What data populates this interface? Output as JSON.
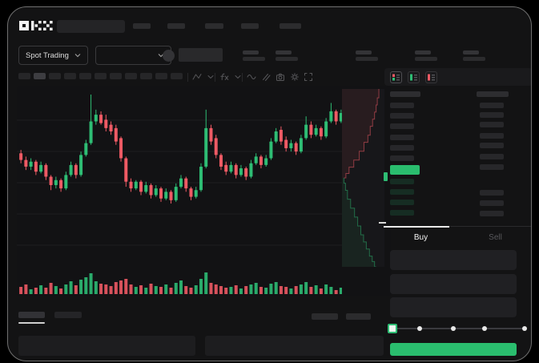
{
  "topbar": {
    "logo_text": "OKX",
    "nav_placeholder_count": 5
  },
  "market_header": {
    "market_selector_label": "Spot Trading",
    "pair_dropdown": "",
    "stat_placeholder_count": 5
  },
  "chart_toolbar": {
    "timeframe_placeholder_count": 11,
    "active_timeframe_index": 1,
    "tool_icons": [
      "zigzag-icon",
      "chevron-down-icon",
      "indicator-fx-icon",
      "chevron-down-icon",
      "wave-icon",
      "layers-icon",
      "camera-icon",
      "gear-icon",
      "expand-icon"
    ]
  },
  "order_book": {
    "view_options": [
      "combined-book-icon",
      "bids-book-icon",
      "asks-book-icon"
    ],
    "selected_view_index": 0,
    "ask_price_rows": 6,
    "ask_amount_rows": 7,
    "bid_price_rows": 4,
    "bid_amount_rows": 3,
    "last_price_highlight_color": "#2abd6e"
  },
  "trade_form": {
    "tabs": [
      {
        "label": "Buy",
        "active": true
      },
      {
        "label": "Sell",
        "active": false
      }
    ],
    "input_count": 3,
    "slider_stop_count": 5,
    "slider_position_index": 0,
    "submit_button_color": "#2abd6e"
  },
  "bottom_panel": {
    "tab_placeholder_count": 2,
    "active_tab_index": 0,
    "right_placeholder_count": 2,
    "content_block_count": 2
  },
  "colors": {
    "up": "#2ebd74",
    "down": "#ee5a64",
    "background": "#131314",
    "skeleton": "#2b2b2d",
    "grid": "#1d1d20",
    "text": "#eaecef",
    "muted": "#58585c"
  },
  "chart_data": {
    "type": "candlestick",
    "title": "",
    "xlabel": "",
    "ylabel": "",
    "grid": true,
    "price_scale": "normalized 0-100",
    "candles_ochl": [
      [
        62,
        58,
        64,
        56
      ],
      [
        58,
        54,
        60,
        52
      ],
      [
        54,
        57,
        59,
        52
      ],
      [
        57,
        51,
        58,
        49
      ],
      [
        51,
        55,
        57,
        50
      ],
      [
        55,
        48,
        56,
        46
      ],
      [
        48,
        43,
        49,
        40
      ],
      [
        43,
        46,
        48,
        41
      ],
      [
        46,
        41,
        47,
        39
      ],
      [
        41,
        49,
        51,
        40
      ],
      [
        49,
        55,
        57,
        48
      ],
      [
        55,
        49,
        56,
        47
      ],
      [
        49,
        61,
        63,
        48
      ],
      [
        61,
        68,
        70,
        60
      ],
      [
        68,
        81,
        97,
        67
      ],
      [
        81,
        85,
        88,
        79
      ],
      [
        85,
        80,
        87,
        79
      ],
      [
        82,
        77,
        85,
        75
      ],
      [
        79,
        75,
        81,
        73
      ],
      [
        77,
        69,
        79,
        67
      ],
      [
        71,
        59,
        72,
        57
      ],
      [
        59,
        45,
        60,
        42
      ],
      [
        45,
        41,
        47,
        39
      ],
      [
        41,
        45,
        46,
        40
      ],
      [
        45,
        39,
        46,
        37
      ],
      [
        39,
        43,
        45,
        38
      ],
      [
        43,
        37,
        44,
        35
      ],
      [
        37,
        41,
        43,
        36
      ],
      [
        41,
        35,
        42,
        33
      ],
      [
        35,
        39,
        41,
        34
      ],
      [
        39,
        34,
        40,
        32
      ],
      [
        34,
        42,
        44,
        33
      ],
      [
        42,
        47,
        49,
        41
      ],
      [
        47,
        41,
        48,
        39
      ],
      [
        41,
        36,
        42,
        34
      ],
      [
        36,
        40,
        42,
        35
      ],
      [
        40,
        54,
        56,
        39
      ],
      [
        54,
        77,
        88,
        53
      ],
      [
        77,
        69,
        79,
        67
      ],
      [
        71,
        61,
        73,
        59
      ],
      [
        61,
        54,
        62,
        52
      ],
      [
        55,
        51,
        57,
        49
      ],
      [
        51,
        55,
        57,
        50
      ],
      [
        55,
        49,
        56,
        47
      ],
      [
        49,
        53,
        55,
        48
      ],
      [
        53,
        48,
        54,
        46
      ],
      [
        48,
        56,
        58,
        47
      ],
      [
        56,
        60,
        62,
        55
      ],
      [
        60,
        55,
        61,
        53
      ],
      [
        55,
        59,
        61,
        54
      ],
      [
        59,
        69,
        71,
        58
      ],
      [
        69,
        75,
        77,
        68
      ],
      [
        76,
        69,
        78,
        67
      ],
      [
        70,
        65,
        72,
        63
      ],
      [
        65,
        68,
        70,
        63
      ],
      [
        68,
        63,
        69,
        61
      ],
      [
        63,
        71,
        73,
        62
      ],
      [
        71,
        79,
        84,
        70
      ],
      [
        79,
        73,
        81,
        71
      ],
      [
        73,
        77,
        79,
        72
      ],
      [
        77,
        72,
        78,
        70
      ],
      [
        72,
        81,
        83,
        71
      ],
      [
        81,
        87,
        92,
        80
      ],
      [
        87,
        81,
        88,
        79
      ],
      [
        81,
        86,
        88,
        80
      ]
    ],
    "volume": [
      9,
      12,
      6,
      8,
      11,
      8,
      14,
      10,
      7,
      12,
      16,
      11,
      18,
      21,
      26,
      16,
      13,
      12,
      10,
      15,
      17,
      19,
      12,
      9,
      11,
      8,
      13,
      10,
      9,
      12,
      8,
      14,
      17,
      10,
      8,
      11,
      19,
      27,
      14,
      12,
      10,
      8,
      9,
      11,
      7,
      10,
      12,
      14,
      9,
      8,
      13,
      15,
      10,
      9,
      7,
      10,
      12,
      15,
      9,
      11,
      7,
      12,
      9,
      5,
      8
    ],
    "depth": {
      "asks_curve": [
        [
          0.94,
          0
        ],
        [
          0.9,
          0.1
        ],
        [
          0.87,
          0.18
        ],
        [
          0.83,
          0.26
        ],
        [
          0.78,
          0.34
        ],
        [
          0.72,
          0.42
        ],
        [
          0.66,
          0.52
        ],
        [
          0.56,
          0.6
        ],
        [
          0.44,
          0.7
        ],
        [
          0.3,
          0.8
        ],
        [
          0.18,
          0.88
        ],
        [
          0.1,
          0.95
        ],
        [
          0.05,
          1
        ]
      ],
      "bids_curve": [
        [
          0.05,
          0
        ],
        [
          0.09,
          0.06
        ],
        [
          0.14,
          0.14
        ],
        [
          0.22,
          0.24
        ],
        [
          0.32,
          0.34
        ],
        [
          0.4,
          0.44
        ],
        [
          0.48,
          0.54
        ],
        [
          0.55,
          0.64
        ],
        [
          0.62,
          0.72
        ],
        [
          0.7,
          0.8
        ],
        [
          0.77,
          0.88
        ],
        [
          0.83,
          0.94
        ],
        [
          0.87,
          1
        ]
      ]
    }
  }
}
